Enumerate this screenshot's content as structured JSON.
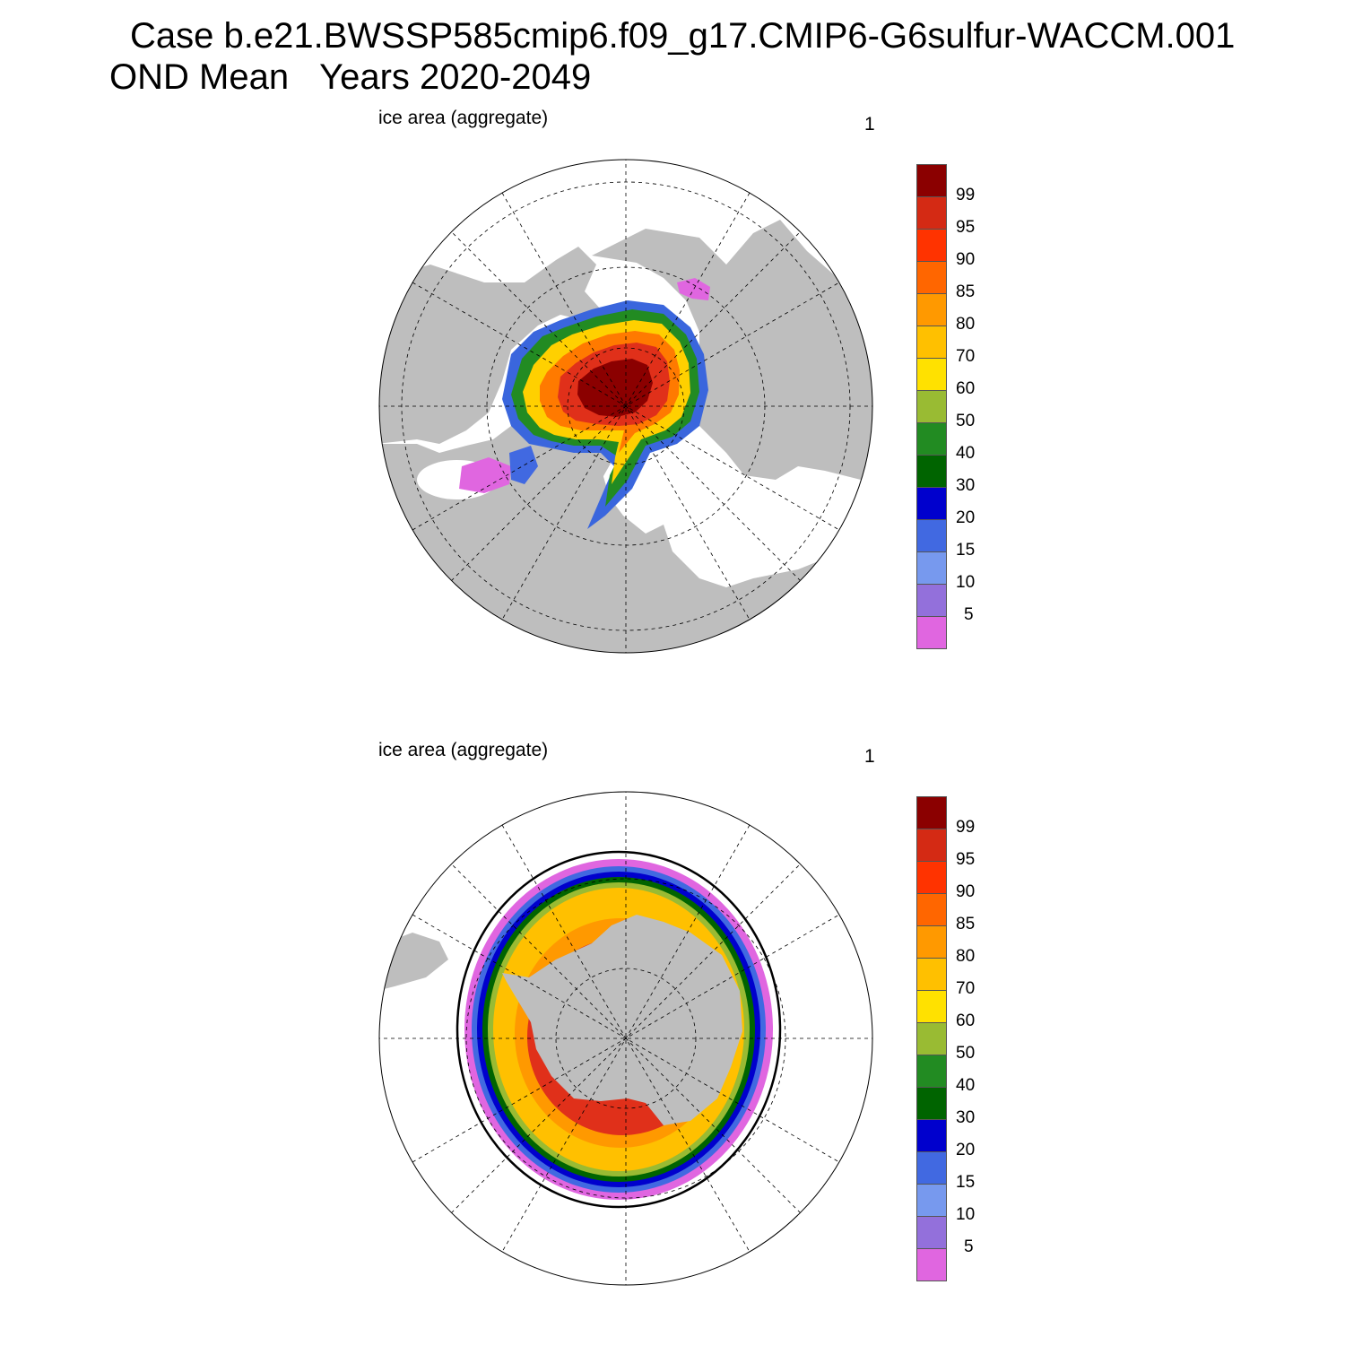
{
  "title_line1": "Case b.e21.BWSSP585cmip6.f09_g17.CMIP6-G6sulfur-WACCM.001",
  "title_line2_a": "OND Mean",
  "title_line2_b": "Years 2020-2049",
  "panels": [
    {
      "left_label": "ice area  (aggregate)",
      "right_label": "1"
    },
    {
      "left_label": "ice area  (aggregate)",
      "right_label": "1"
    }
  ],
  "colorbar": {
    "colors": [
      "#8b0000",
      "#d42a14",
      "#ff3300",
      "#ff6600",
      "#ff9900",
      "#ffc000",
      "#ffe100",
      "#99bb33",
      "#228b22",
      "#006400",
      "#0000cd",
      "#4169e1",
      "#7799ee",
      "#9370db",
      "#e066e0"
    ],
    "tick_labels": [
      "99",
      "95",
      "90",
      "85",
      "80",
      "70",
      "60",
      "50",
      "40",
      "30",
      "20",
      "15",
      "10",
      "5"
    ]
  },
  "style": {
    "land": "#bebebe",
    "ocean": "#ffffff"
  }
}
